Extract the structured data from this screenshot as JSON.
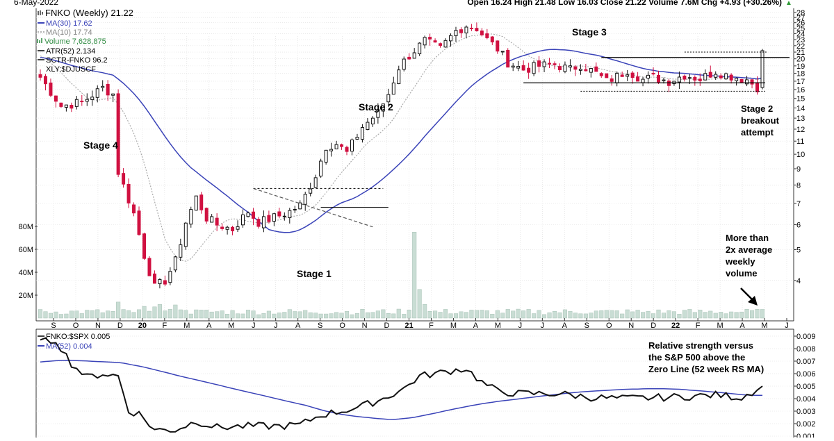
{
  "header": {
    "date": "6-May-2022",
    "quote": "Open 16.24  High 21.48  Low 16.03  Close 21.22  Volume 7.6M  Chg +4.93 (+30.26%)",
    "up_arrow": "▲"
  },
  "legend": {
    "symbol": "FNKO (Weekly) 21.22",
    "ma30": "MA(30) 17.62",
    "ma10": "MA(10) 17.74",
    "volume": "Volume 7,628,875",
    "atr": "ATR(52) 2.134",
    "sctr": "SCTR-FNKO 96.2",
    "xly": "XLY:$DJUSCF"
  },
  "annotations": {
    "stage4": "Stage 4",
    "stage1": "Stage 1",
    "stage2": "Stage 2",
    "stage3": "Stage 3",
    "breakout": [
      "Stage 2",
      "breakout",
      "attempt"
    ],
    "volume_note": [
      "More than",
      "2x average",
      "weekly",
      "volume"
    ],
    "rs_note": [
      "Relative strength versus",
      "the S&P 500 above the",
      "Zero Line (52 week RS MA)"
    ]
  },
  "lower_legend": {
    "rs": "FNKO:$SPX 0.005",
    "ma52": "MA(52) 0.004"
  },
  "colors": {
    "up": "#111111",
    "down": "#d01040",
    "ma30": "#3a43b8",
    "ma10": "#aaaaaa",
    "volume": "#c9ddd4",
    "volume_edge": "#a8c2b6",
    "rs_line": "#111111",
    "grid": "#dddddd",
    "quote_arrow": "#2e9a35"
  },
  "chart_data": [
    {
      "type": "candlestick",
      "title": "FNKO (Weekly) 21.22",
      "y_scale": "log",
      "ylim": [
        3.2,
        28
      ],
      "y_ticks": [
        28,
        27,
        26,
        25,
        24,
        23,
        22,
        21,
        20,
        19,
        18,
        17,
        16,
        15,
        14,
        13,
        12,
        11,
        10,
        9,
        8,
        7,
        6,
        5,
        4
      ],
      "x_labels": [
        "S",
        "O",
        "N",
        "D",
        "20",
        "F",
        "M",
        "A",
        "M",
        "J",
        "J",
        "A",
        "S",
        "O",
        "N",
        "D",
        "21",
        "F",
        "M",
        "A",
        "M",
        "J",
        "J",
        "A",
        "S",
        "O",
        "N",
        "D",
        "22",
        "F",
        "M",
        "A",
        "M",
        "J"
      ],
      "x_range": [
        "2019-09",
        "2022-06"
      ],
      "volume_ticks": [
        "80M",
        "60M",
        "40M",
        "20M"
      ],
      "volume_max": 100,
      "ohlc_sample": [
        {
          "t": 0,
          "o": 17.5,
          "h": 18.5,
          "l": 16.5,
          "c": 17.0
        },
        {
          "t": 4,
          "o": 15.0,
          "h": 15.5,
          "l": 13.8,
          "c": 14.2
        },
        {
          "t": 13,
          "o": 16.2,
          "h": 17.0,
          "l": 15.5,
          "c": 16.0
        },
        {
          "t": 15,
          "o": 15.5,
          "h": 15.8,
          "l": 8.5,
          "c": 8.8
        },
        {
          "t": 22,
          "o": 4.5,
          "h": 5.0,
          "l": 3.6,
          "c": 3.8
        },
        {
          "t": 28,
          "o": 5.2,
          "h": 6.3,
          "l": 5.0,
          "c": 6.1
        },
        {
          "t": 41,
          "o": 5.8,
          "h": 7.1,
          "l": 5.5,
          "c": 6.9
        },
        {
          "t": 60,
          "o": 9.5,
          "h": 10.8,
          "l": 9.2,
          "c": 10.4
        },
        {
          "t": 75,
          "o": 19.0,
          "h": 23.0,
          "l": 18.0,
          "c": 22.5
        },
        {
          "t": 90,
          "o": 18.3,
          "h": 19.5,
          "l": 17.0,
          "c": 17.5
        },
        {
          "t": 110,
          "o": 18.0,
          "h": 19.5,
          "l": 16.8,
          "c": 17.5
        },
        {
          "t": 139,
          "o": 16.24,
          "h": 21.48,
          "l": 16.03,
          "c": 21.22
        }
      ],
      "lines": {
        "stage1_resistance": 7.8,
        "stage1_base_top": 6.8,
        "stage3_resistance": 20.2,
        "stage3_support": 16.8,
        "stage3_low": 15.8,
        "breakout_level": 21.0
      }
    },
    {
      "type": "line",
      "title": "FNKO:$SPX 0.005",
      "series": [
        {
          "name": "FNKO:$SPX",
          "last": 0.005
        },
        {
          "name": "MA(52)",
          "last": 0.004
        }
      ],
      "ylim": [
        0.001,
        0.009
      ],
      "y_ticks": [
        0.009,
        0.008,
        0.007,
        0.006,
        0.005,
        0.004,
        0.003,
        0.002,
        0.001
      ]
    }
  ]
}
